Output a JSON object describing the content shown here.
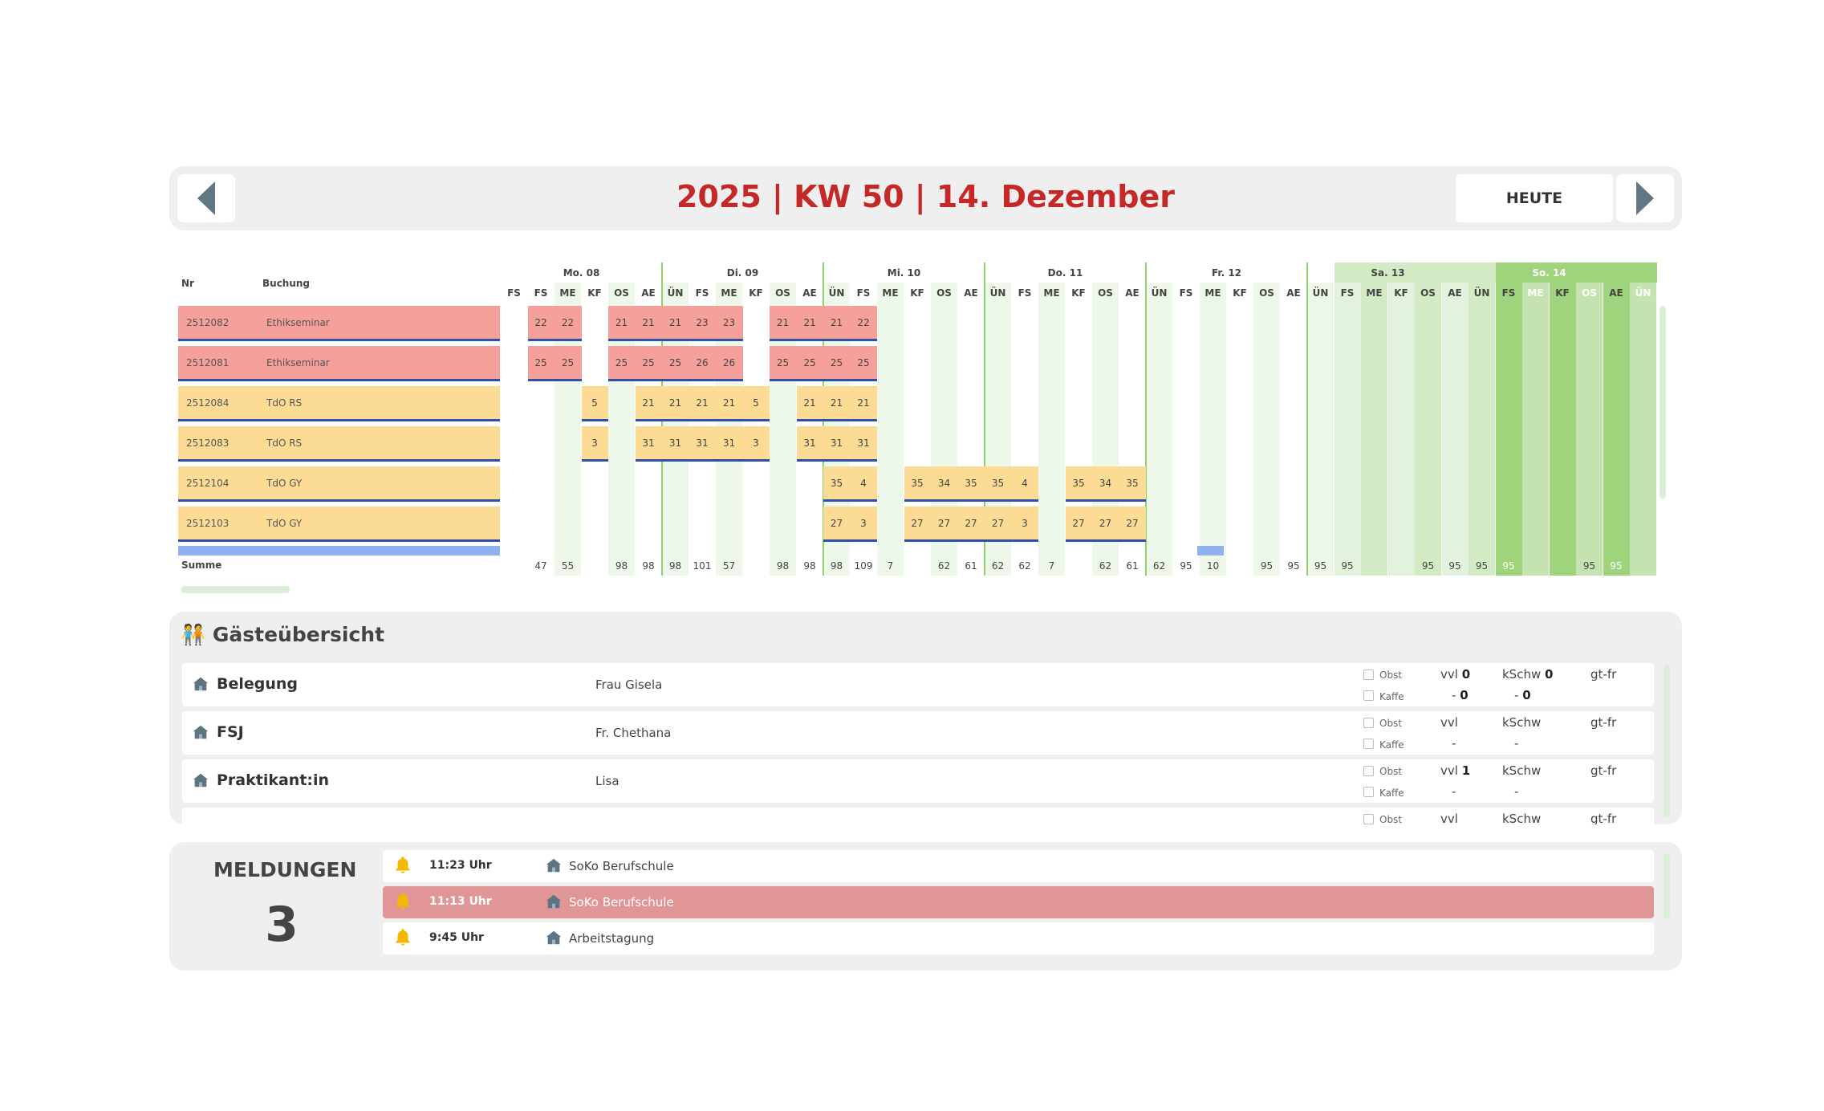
{
  "header": {
    "title": "2025 | KW 50 |  14. Dezember",
    "today_label": "HEUTE",
    "prev_icon": "chevron-left-icon",
    "next_icon": "chevron-right-icon"
  },
  "grid": {
    "col_nr": "Nr",
    "col_booking": "Buchung",
    "sum_label": "Summe",
    "days": [
      "Mo. 08",
      "Di. 09",
      "Mi. 10",
      "Do. 11",
      "Fr. 12",
      "Sa. 13",
      "So. 14"
    ],
    "meals": [
      "FS",
      "ME",
      "KF",
      "OS",
      "AE",
      "ÜN"
    ],
    "first_col": "FS",
    "rows": [
      {
        "nr": "2512082",
        "name": "Ethikseminar",
        "color": "#f5a09a"
      },
      {
        "nr": "2512081",
        "name": "Ethikseminar",
        "color": "#f5a09a"
      },
      {
        "nr": "2512084",
        "name": "TdO RS",
        "color": "#fcdc95"
      },
      {
        "nr": "2512083",
        "name": "TdO RS",
        "color": "#fcdc95"
      },
      {
        "nr": "2512104",
        "name": "TdO GY",
        "color": "#fcdc95"
      },
      {
        "nr": "2512103",
        "name": "TdO GY",
        "color": "#fcdc95"
      }
    ],
    "cells": [
      [
        "22",
        "22",
        "",
        "21",
        "21",
        "21",
        "23",
        "23",
        "",
        "21",
        "21",
        "21",
        "22"
      ],
      [
        "25",
        "25",
        "",
        "25",
        "25",
        "25",
        "26",
        "26",
        "",
        "25",
        "25",
        "25",
        "25"
      ],
      [
        "",
        "5",
        "",
        "21",
        "21",
        "21",
        "21",
        "5",
        "",
        "21",
        "21",
        "21"
      ],
      [
        "",
        "3",
        "",
        "31",
        "31",
        "31",
        "31",
        "3",
        "",
        "31",
        "31",
        "31"
      ],
      [
        "35",
        "4",
        "",
        "35",
        "34",
        "35",
        "35",
        "4",
        "",
        "35",
        "34",
        "35"
      ],
      [
        "27",
        "3",
        "",
        "27",
        "27",
        "27",
        "27",
        "3",
        "",
        "27",
        "27",
        "27"
      ]
    ],
    "sums": [
      "47",
      "55",
      "",
      "98",
      "98",
      "98",
      "101",
      "57",
      "",
      "98",
      "98",
      "98",
      "109",
      "7",
      "",
      "62",
      "61",
      "62",
      "62",
      "7",
      "",
      "62",
      "61",
      "62",
      "95",
      "10",
      "",
      "95",
      "95",
      "95",
      "95",
      "",
      "",
      "95",
      "95",
      "95",
      "95",
      "",
      "",
      "95",
      "95"
    ]
  },
  "guests": {
    "title": "Gästeübersicht",
    "rows": [
      {
        "label": "Belegung",
        "person": "Frau Gisela",
        "obst": "Obst",
        "kaffe": "Kaffe",
        "vvl": "vvl",
        "vvl_val": "0",
        "kschw": "kSchw",
        "kschw_val": "0",
        "gtfr": "gt-fr",
        "dash1": "-",
        "dash1_val": "0",
        "dash2": "-",
        "dash2_val": "0"
      },
      {
        "label": "FSJ",
        "person": "Fr. Chethana",
        "obst": "Obst",
        "kaffe": "Kaffe",
        "vvl": "vvl",
        "vvl_val": "",
        "kschw": "kSchw",
        "kschw_val": "",
        "gtfr": "gt-fr",
        "dash1": "-",
        "dash1_val": "",
        "dash2": "-",
        "dash2_val": ""
      },
      {
        "label": "Praktikant:in",
        "person": "Lisa",
        "obst": "Obst",
        "kaffe": "Kaffe",
        "vvl": "vvl",
        "vvl_val": "1",
        "kschw": "kSchw",
        "kschw_val": "",
        "gtfr": "gt-fr",
        "dash1": "-",
        "dash1_val": "",
        "dash2": "-",
        "dash2_val": ""
      }
    ]
  },
  "messages": {
    "title": "MELDUNGEN",
    "count": "3",
    "items": [
      {
        "time": "11:23 Uhr",
        "text": "SoKo Berufschule",
        "alert": false
      },
      {
        "time": "11:13 Uhr",
        "text": "SoKo Berufschule",
        "alert": true
      },
      {
        "time": "9:45 Uhr",
        "text": "Arbeitstagung",
        "alert": false
      }
    ]
  }
}
